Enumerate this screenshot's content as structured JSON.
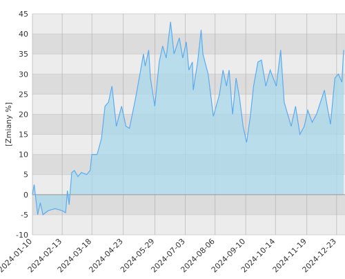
{
  "chart_data": {
    "type": "area",
    "y_label": "[Zmiany %]",
    "x": [
      "2024-01-10",
      "2024-01-12",
      "2024-01-16",
      "2024-01-19",
      "2024-01-22",
      "2024-01-28",
      "2024-02-05",
      "2024-02-13",
      "2024-02-17",
      "2024-02-19",
      "2024-02-21",
      "2024-02-24",
      "2024-02-27",
      "2024-03-02",
      "2024-03-06",
      "2024-03-12",
      "2024-03-16",
      "2024-03-18",
      "2024-03-24",
      "2024-03-29",
      "2024-04-02",
      "2024-04-06",
      "2024-04-10",
      "2024-04-15",
      "2024-04-21",
      "2024-04-26",
      "2024-04-30",
      "2024-05-07",
      "2024-05-12",
      "2024-05-16",
      "2024-05-18",
      "2024-05-22",
      "2024-05-24",
      "2024-05-29",
      "2024-06-03",
      "2024-06-07",
      "2024-06-11",
      "2024-06-16",
      "2024-06-20",
      "2024-06-26",
      "2024-06-30",
      "2024-07-04",
      "2024-07-07",
      "2024-07-11",
      "2024-07-12",
      "2024-07-17",
      "2024-07-21",
      "2024-07-23",
      "2024-07-29",
      "2024-08-04",
      "2024-08-11",
      "2024-08-15",
      "2024-08-19",
      "2024-08-22",
      "2024-08-26",
      "2024-08-30",
      "2024-09-03",
      "2024-09-07",
      "2024-09-11",
      "2024-09-15",
      "2024-09-19",
      "2024-09-24",
      "2024-09-28",
      "2024-10-03",
      "2024-10-08",
      "2024-10-15",
      "2024-10-20",
      "2024-10-24",
      "2024-10-28",
      "2024-11-01",
      "2024-11-06",
      "2024-11-11",
      "2024-11-16",
      "2024-11-20",
      "2024-11-25",
      "2024-11-30",
      "2024-12-09",
      "2024-12-13",
      "2024-12-16",
      "2024-12-21",
      "2024-12-25",
      "2024-12-29",
      "2024-12-31"
    ],
    "values": [
      0,
      2.5,
      -5,
      -2,
      -5,
      -4,
      -3.5,
      -4,
      -4.5,
      1,
      -2.5,
      5.5,
      6,
      4.5,
      5.5,
      5,
      6,
      10,
      10,
      14,
      22,
      23,
      27,
      17,
      22,
      17,
      16.5,
      24,
      30,
      35,
      32,
      36,
      29,
      22,
      33,
      37,
      34,
      43,
      35,
      39,
      34,
      38,
      31,
      33,
      26,
      33,
      41,
      35,
      30,
      19.5,
      25,
      31,
      27,
      31,
      20,
      29,
      24,
      17,
      13,
      19,
      27,
      33,
      33.5,
      27,
      31,
      27,
      36,
      23,
      20,
      17,
      22,
      15,
      17,
      21,
      18,
      20,
      26,
      21,
      17.5,
      29,
      30,
      28,
      36
    ],
    "line_color": "#5aabef",
    "fill_color": "#a8d8ea",
    "xlim": [
      "2024-01-10",
      "2024-12-31"
    ],
    "xticks": [
      "2024-01-10",
      "2024-02-13",
      "2024-03-18",
      "2024-04-23",
      "2024-05-29",
      "2024-07-03",
      "2024-08-06",
      "2024-09-10",
      "2024-10-14",
      "2024-11-19",
      "2024-12-23"
    ],
    "ylim": [
      -10,
      45
    ],
    "yticks": [
      -10,
      -5,
      0,
      5,
      10,
      15,
      20,
      25,
      30,
      35,
      40,
      45
    ],
    "grid": true
  }
}
